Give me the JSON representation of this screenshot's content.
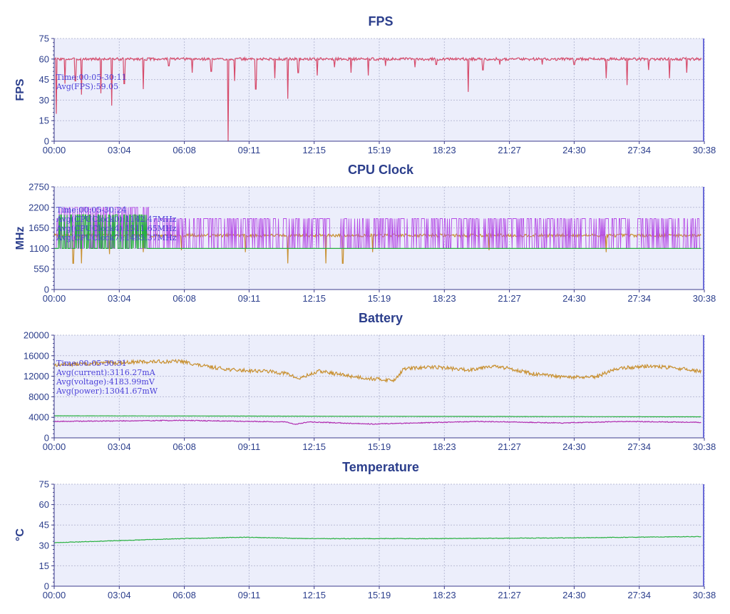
{
  "colors": {
    "plot_bg": "#eceefb",
    "grid": "#b9bcd6",
    "axis": "#3c3c8c",
    "text": "#2b3e8c",
    "annotation": "#4a3fd8",
    "fps": "#d64b6b",
    "cpu_a": "#b44ae6",
    "cpu_b": "#c89030",
    "cpu_c": "#28b040",
    "bat_power": "#c89030",
    "bat_voltage": "#28b040",
    "bat_current": "#b02cb0",
    "temp": "#28b040"
  },
  "chart_data": [
    {
      "type": "line",
      "title": "FPS",
      "ylabel": "FPS",
      "xlabel": "",
      "x_ticks": [
        "00:00",
        "03:04",
        "06:08",
        "09:11",
        "12:15",
        "15:19",
        "18:23",
        "21:27",
        "24:30",
        "27:34",
        "30:38"
      ],
      "xlim": [
        "00:00",
        "30:38"
      ],
      "ylim": [
        0,
        75
      ],
      "y_ticks": [
        0,
        15,
        30,
        45,
        60,
        75
      ],
      "grid": true,
      "annotations": [
        "Time:00:05-30:11",
        "Avg(FPS):59.05"
      ],
      "series": [
        {
          "color_key": "fps",
          "baseline": 60,
          "noise": 1,
          "seed": 3,
          "dips": [
            [
              0.1,
              20
            ],
            [
              0.5,
              42
            ],
            [
              1.0,
              44
            ],
            [
              1.3,
              34
            ],
            [
              2.2,
              35
            ],
            [
              2.7,
              26
            ],
            [
              3.3,
              42
            ],
            [
              4.2,
              38
            ],
            [
              5.4,
              55
            ],
            [
              6.5,
              50
            ],
            [
              7.4,
              51
            ],
            [
              8.2,
              0
            ],
            [
              8.5,
              44
            ],
            [
              9.5,
              38
            ],
            [
              10.4,
              46
            ],
            [
              11.0,
              31
            ],
            [
              11.5,
              50
            ],
            [
              12.4,
              48
            ],
            [
              13.2,
              54
            ],
            [
              14.0,
              50
            ],
            [
              14.8,
              48
            ],
            [
              15.6,
              55
            ],
            [
              17.0,
              54
            ],
            [
              18.0,
              56
            ],
            [
              19.5,
              36
            ],
            [
              20.2,
              52
            ],
            [
              21.0,
              56
            ],
            [
              23.0,
              56
            ],
            [
              24.5,
              56
            ],
            [
              26.0,
              46
            ],
            [
              27.0,
              41
            ],
            [
              28.0,
              52
            ],
            [
              29.0,
              46
            ],
            [
              29.8,
              50
            ]
          ]
        }
      ]
    },
    {
      "type": "line",
      "title": "CPU Clock",
      "ylabel": "MHz",
      "xlabel": "",
      "x_ticks": [
        "00:00",
        "03:04",
        "06:08",
        "09:11",
        "12:15",
        "15:19",
        "18:23",
        "21:27",
        "24:30",
        "27:34",
        "30:38"
      ],
      "xlim": [
        "00:00",
        "30:38"
      ],
      "ylim": [
        0,
        2750
      ],
      "y_ticks": [
        0,
        550,
        1100,
        1650,
        2200,
        2750
      ],
      "grid": true,
      "annotations": [
        "Time:00:05-30:24",
        "Avg(CPUClock0):1142.47MHz",
        "Avg(CPUClock4):1511.65MHz",
        "Avg(CPUClock7):1485.37MHz"
      ],
      "series": [
        {
          "name": "CPUClock4",
          "color_key": "cpu_b",
          "baseline": 1450,
          "noise": 40,
          "seed": 7,
          "dips": [
            [
              0.9,
              700
            ],
            [
              1.3,
              700
            ],
            [
              2.6,
              950
            ],
            [
              4.2,
              1000
            ],
            [
              6.0,
              1050
            ],
            [
              9.0,
              1000
            ],
            [
              11.0,
              700
            ],
            [
              12.8,
              700
            ],
            [
              13.6,
              700
            ],
            [
              15.0,
              1000
            ],
            [
              20.5,
              1050
            ],
            [
              26.0,
              1000
            ]
          ]
        },
        {
          "name": "CPUClock7",
          "color_key": "cpu_a",
          "osc": [
            1100,
            1900
          ],
          "seed": 11,
          "segments": [
            [
              0.2,
              4.5,
              1100,
              2200
            ]
          ]
        },
        {
          "name": "CPUClock0",
          "color_key": "cpu_c",
          "baseline": 1100,
          "noise": 0,
          "seed": 5,
          "segments": [
            [
              0.2,
              4.5,
              1100,
              2000
            ]
          ]
        }
      ]
    },
    {
      "type": "line",
      "title": "Battery",
      "ylabel": "",
      "xlabel": "",
      "x_ticks": [
        "00:00",
        "03:04",
        "06:08",
        "09:11",
        "12:15",
        "15:19",
        "18:23",
        "21:27",
        "24:30",
        "27:34",
        "30:38"
      ],
      "xlim": [
        "00:00",
        "30:38"
      ],
      "ylim": [
        0,
        20000
      ],
      "y_ticks": [
        0,
        4000,
        8000,
        12000,
        16000,
        20000
      ],
      "grid": true,
      "annotations": [
        "Time:00:05-30:31",
        "Avg(current):3116.27mA",
        "Avg(voltage):4183.99mV",
        "Avg(power):13041.67mW"
      ],
      "series": [
        {
          "name": "power",
          "color_key": "bat_power",
          "noise": 350,
          "seed": 13,
          "points": [
            [
              0,
              14200
            ],
            [
              2,
              14500
            ],
            [
              4,
              14800
            ],
            [
              6,
              14900
            ],
            [
              7,
              14000
            ],
            [
              8.5,
              13200
            ],
            [
              10,
              13000
            ],
            [
              11,
              12500
            ],
            [
              11.5,
              11500
            ],
            [
              12.5,
              13000
            ],
            [
              14,
              12000
            ],
            [
              15,
              11500
            ],
            [
              16,
              11200
            ],
            [
              16.5,
              13500
            ],
            [
              18,
              13800
            ],
            [
              19.5,
              13200
            ],
            [
              20.5,
              14000
            ],
            [
              21.5,
              13500
            ],
            [
              22.5,
              12500
            ],
            [
              24,
              11800
            ],
            [
              25.5,
              11800
            ],
            [
              26.5,
              13500
            ],
            [
              28,
              14000
            ],
            [
              29.5,
              13500
            ],
            [
              30.6,
              12900
            ]
          ]
        },
        {
          "name": "voltage",
          "color_key": "bat_voltage",
          "noise": 15,
          "seed": 17,
          "points": [
            [
              0,
              4300
            ],
            [
              30.6,
              4100
            ]
          ]
        },
        {
          "name": "current",
          "color_key": "bat_current",
          "noise": 80,
          "seed": 19,
          "points": [
            [
              0,
              3200
            ],
            [
              6,
              3400
            ],
            [
              11,
              3100
            ],
            [
              11.3,
              2600
            ],
            [
              12,
              3100
            ],
            [
              15,
              2700
            ],
            [
              16,
              2800
            ],
            [
              20,
              3200
            ],
            [
              24,
              2900
            ],
            [
              27,
              3200
            ],
            [
              30.6,
              3000
            ]
          ]
        }
      ]
    },
    {
      "type": "line",
      "title": "Temperature",
      "ylabel": "°C",
      "xlabel": "",
      "x_ticks": [
        "00:00",
        "03:04",
        "06:08",
        "09:11",
        "12:15",
        "15:19",
        "18:23",
        "21:27",
        "24:30",
        "27:34",
        "30:38"
      ],
      "xlim": [
        "00:00",
        "30:38"
      ],
      "ylim": [
        0,
        75
      ],
      "y_ticks": [
        0,
        15,
        30,
        45,
        60,
        75
      ],
      "grid": true,
      "annotations": [],
      "series": [
        {
          "color_key": "temp",
          "noise": 0.2,
          "seed": 23,
          "points": [
            [
              0,
              32
            ],
            [
              3,
              33.5
            ],
            [
              6,
              35
            ],
            [
              9,
              36
            ],
            [
              12,
              35
            ],
            [
              18,
              35
            ],
            [
              24,
              35.5
            ],
            [
              30.6,
              36.5
            ]
          ]
        }
      ]
    }
  ]
}
